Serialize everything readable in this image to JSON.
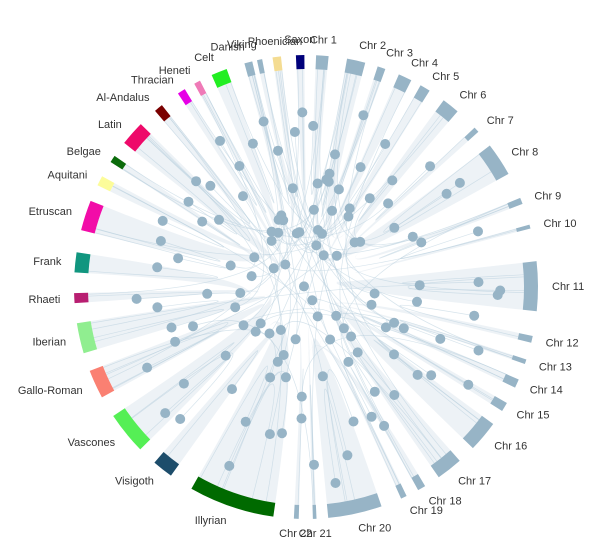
{
  "chart_data": {
    "type": "chord",
    "groups": [
      {
        "name": "Chr 1",
        "color": "#97b4c6"
      },
      {
        "name": "Chr 2",
        "color": "#97b4c6"
      },
      {
        "name": "Chr 3",
        "color": "#97b4c6"
      },
      {
        "name": "Chr 4",
        "color": "#97b4c6"
      },
      {
        "name": "Chr 5",
        "color": "#97b4c6"
      },
      {
        "name": "Chr 6",
        "color": "#97b4c6"
      },
      {
        "name": "Chr 7",
        "color": "#97b4c6"
      },
      {
        "name": "Chr 8",
        "color": "#97b4c6"
      },
      {
        "name": "Chr 9",
        "color": "#97b4c6"
      },
      {
        "name": "Chr 10",
        "color": "#97b4c6"
      },
      {
        "name": "Chr 11",
        "color": "#97b4c6"
      },
      {
        "name": "Chr 12",
        "color": "#97b4c6"
      },
      {
        "name": "Chr 13",
        "color": "#97b4c6"
      },
      {
        "name": "Chr 14",
        "color": "#97b4c6"
      },
      {
        "name": "Chr 15",
        "color": "#97b4c6"
      },
      {
        "name": "Chr 16",
        "color": "#97b4c6"
      },
      {
        "name": "Chr 17",
        "color": "#97b4c6"
      },
      {
        "name": "Chr 18",
        "color": "#97b4c6"
      },
      {
        "name": "Chr 19",
        "color": "#97b4c6"
      },
      {
        "name": "Chr 20",
        "color": "#97b4c6"
      },
      {
        "name": "Chr 21",
        "color": "#97b4c6"
      },
      {
        "name": "Chr 22",
        "color": "#97b4c6"
      },
      {
        "name": "Illyrian",
        "color": "#006a00"
      },
      {
        "name": "Visigoth",
        "color": "#1d4d6b"
      },
      {
        "name": "Vascones",
        "color": "#55ef55"
      },
      {
        "name": "Gallo-Roman",
        "color": "#fa8072"
      },
      {
        "name": "Iberian",
        "color": "#90ee90"
      },
      {
        "name": "Rhaeti",
        "color": "#b81e71"
      },
      {
        "name": "Frank",
        "color": "#11967f"
      },
      {
        "name": "Etruscan",
        "color": "#f20ca8"
      },
      {
        "name": "Aquitani",
        "color": "#fcfc9a"
      },
      {
        "name": "Belgae",
        "color": "#0b6b0b"
      },
      {
        "name": "Latin",
        "color": "#ee0a6a"
      },
      {
        "name": "Al-Andalus",
        "color": "#7a0000"
      },
      {
        "name": "Thracian",
        "color": "#e600e6"
      },
      {
        "name": "Heneti",
        "color": "#ef7ab7"
      },
      {
        "name": "Celt",
        "color": "#22ee22"
      },
      {
        "name": "Danish",
        "color": "#97b4c6"
      },
      {
        "name": "Viking",
        "color": "#97b4c6"
      },
      {
        "name": "Phoenician",
        "color": "#f4dc92"
      },
      {
        "name": "Saxon",
        "color": "#00007a"
      }
    ]
  }
}
